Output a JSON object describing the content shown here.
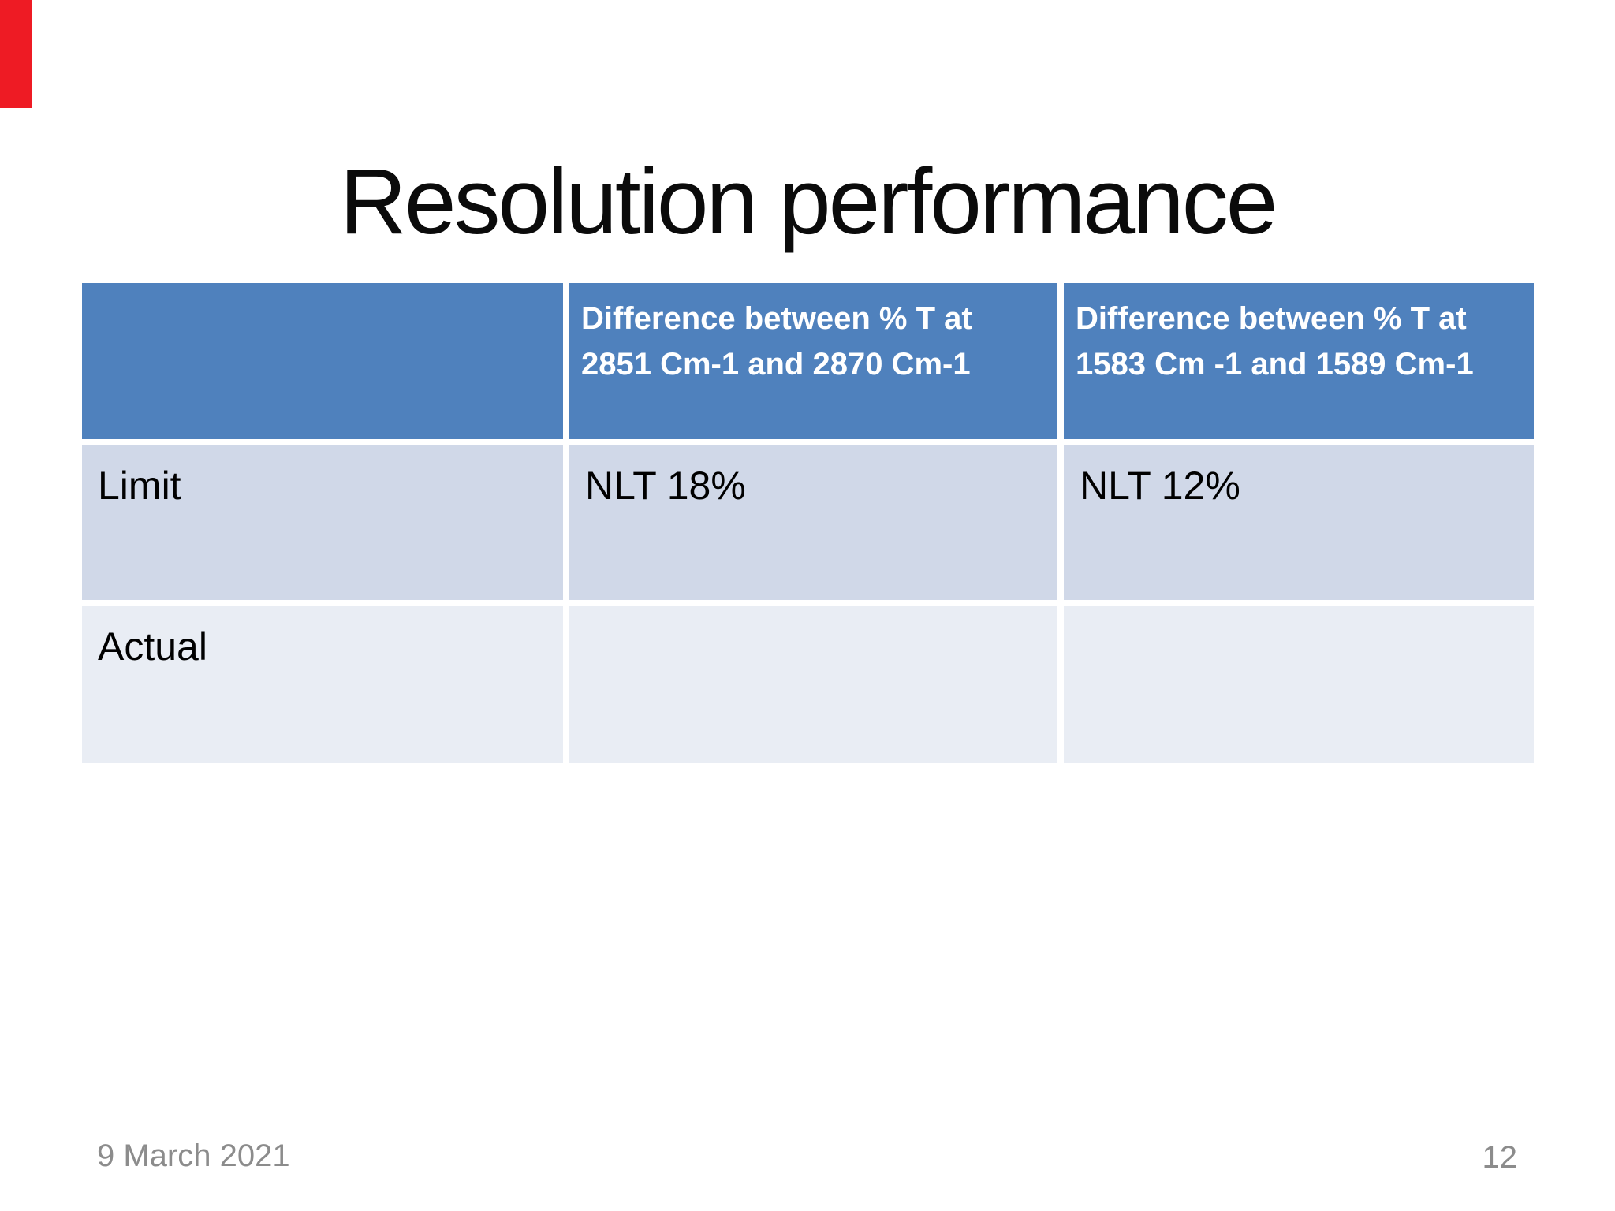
{
  "slide": {
    "title": "Resolution performance",
    "table": {
      "header_cells": [
        "",
        "Difference between % T at 2851 Cm-1 and 2870 Cm-1",
        "Difference between % T at 1583 Cm -1 and 1589 Cm-1"
      ],
      "rows": [
        {
          "cells": [
            "Limit",
            "NLT 18%",
            "NLT 12%"
          ]
        },
        {
          "cells": [
            "Actual",
            "",
            ""
          ]
        }
      ]
    },
    "footer": {
      "date": "9 March 2021",
      "page_number": "12"
    },
    "colors": {
      "header_bg": "#4f81bd",
      "row_limit_bg": "#d0d8e8",
      "row_actual_bg": "#e9edf4",
      "footer_text": "#8c8c8c",
      "red_marker": "#ee1b24"
    }
  }
}
